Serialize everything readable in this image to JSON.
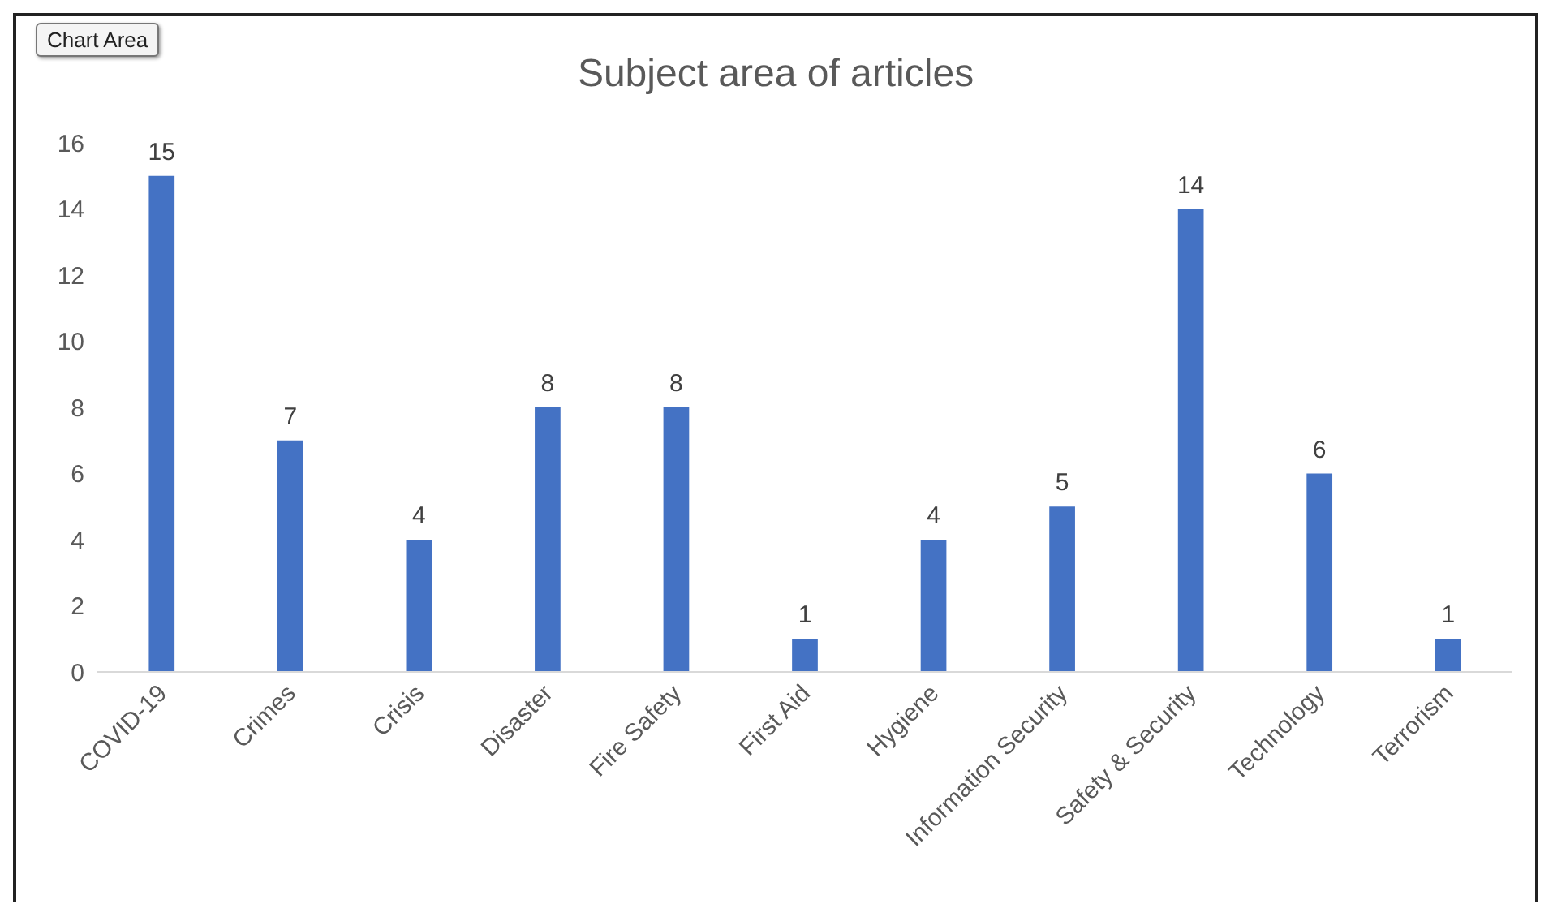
{
  "chart_data": {
    "type": "bar",
    "title": "Subject area of articles",
    "categories": [
      "COVID-19",
      "Crimes",
      "Crisis",
      "Disaster",
      "Fire Safety",
      "First Aid",
      "Hygiene",
      "Information Security",
      "Safety & Security",
      "Technology",
      "Terrorism"
    ],
    "values": [
      15,
      7,
      4,
      8,
      8,
      1,
      4,
      5,
      14,
      6,
      1
    ],
    "color": "#4472c4",
    "ylim": [
      0,
      16
    ],
    "yticks": [
      0,
      2,
      4,
      6,
      8,
      10,
      12,
      14,
      16
    ],
    "data_labels": true,
    "annotations": [
      "Chart Area"
    ]
  }
}
